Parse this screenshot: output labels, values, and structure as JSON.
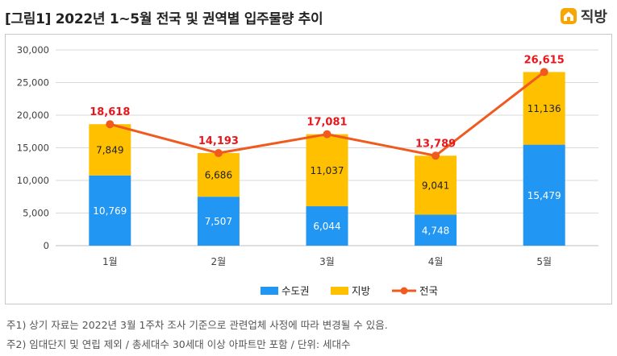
{
  "header": {
    "title": "[그림1] 2022년 1~5월 전국 및 권역별 입주물량 추이",
    "brand_name": "직방",
    "brand_color": "#f7a600"
  },
  "chart_data": {
    "type": "bar",
    "stacked": true,
    "title": "[그림1] 2022년 1~5월 전국 및 권역별 입주물량 추이",
    "categories": [
      "1월",
      "2월",
      "3월",
      "4월",
      "5월"
    ],
    "series": [
      {
        "name": "수도권",
        "kind": "bar",
        "color": "#2196f3",
        "values": [
          10769,
          7507,
          6044,
          4748,
          15479
        ],
        "labels": [
          "10,769",
          "7,507",
          "6,044",
          "4,748",
          "15,479"
        ]
      },
      {
        "name": "지방",
        "kind": "bar",
        "color": "#ffc000",
        "values": [
          7849,
          6686,
          11037,
          9041,
          11136
        ],
        "labels": [
          "7,849",
          "6,686",
          "11,037",
          "9,041",
          "11,136"
        ]
      },
      {
        "name": "전국",
        "kind": "line",
        "color": "#f05a1e",
        "values": [
          18618,
          14193,
          17081,
          13789,
          26615
        ],
        "labels": [
          "18,618",
          "14,193",
          "17,081",
          "13,789",
          "26,615"
        ],
        "label_color": "#e8171c"
      }
    ],
    "ylim": [
      0,
      30000
    ],
    "y_ticks": [
      0,
      5000,
      10000,
      15000,
      20000,
      25000,
      30000
    ],
    "y_tick_labels": [
      "0",
      "5,000",
      "10,000",
      "15,000",
      "20,000",
      "25,000",
      "30,000"
    ],
    "grid": true,
    "legend_position": "bottom",
    "xlabel": "",
    "ylabel": ""
  },
  "notes": [
    "주1) 상기 자료는 2022년 3월 1주차 조사 기준으로 관련업체 사정에 따라 변경될 수 있음.",
    "주2) 임대단지 및 연립 제외 / 총세대수 30세대 이상 아파트만 포함 / 단위: 세대수"
  ]
}
